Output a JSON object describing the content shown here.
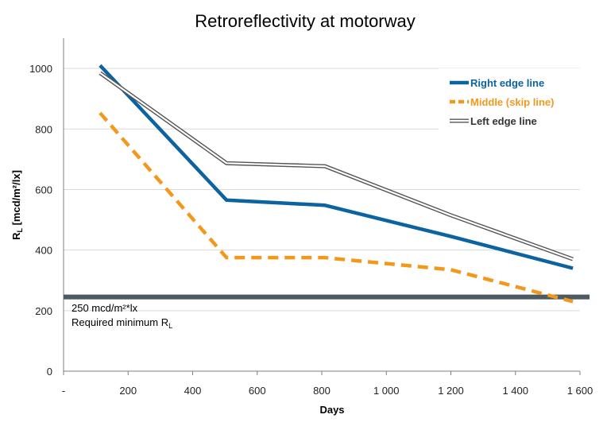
{
  "chart_data": {
    "type": "line",
    "title": "Retroreflectivity at motorway",
    "xlabel": "Days",
    "ylabel_main": "R",
    "ylabel_sub": "L",
    "ylabel_tail": " [mcd/m²/lx]",
    "xlim": [
      0,
      1600
    ],
    "ylim": [
      0,
      1100
    ],
    "x_ticks": [
      {
        "value": 0,
        "label": "-"
      },
      {
        "value": 200,
        "label": "200"
      },
      {
        "value": 400,
        "label": "400"
      },
      {
        "value": 600,
        "label": "600"
      },
      {
        "value": 800,
        "label": "800"
      },
      {
        "value": 1000,
        "label": "1 000"
      },
      {
        "value": 1200,
        "label": "1 200"
      },
      {
        "value": 1400,
        "label": "1 400"
      },
      {
        "value": 1600,
        "label": "1 600"
      }
    ],
    "y_ticks": [
      {
        "value": 0,
        "label": "0"
      },
      {
        "value": 200,
        "label": "200"
      },
      {
        "value": 400,
        "label": "400"
      },
      {
        "value": 600,
        "label": "600"
      },
      {
        "value": 800,
        "label": "800"
      },
      {
        "value": 1000,
        "label": "1000"
      }
    ],
    "grid": "horizontal",
    "legend_position": "top-right",
    "series": [
      {
        "name": "Right edge line",
        "color": "#0b63a0",
        "style": "solid",
        "x": [
          113,
          505,
          810,
          1200,
          1578
        ],
        "y": [
          1010,
          565,
          548,
          445,
          340
        ]
      },
      {
        "name": "Middle (skip line)",
        "color": "#f2991d",
        "style": "dashed",
        "x": [
          113,
          505,
          810,
          1200,
          1578
        ],
        "y": [
          853,
          375,
          375,
          335,
          230
        ]
      },
      {
        "name": "Left edge line",
        "color": "#555555",
        "style": "double",
        "x": [
          113,
          505,
          810,
          1200,
          1578
        ],
        "y": [
          985,
          687,
          677,
          515,
          370
        ]
      }
    ],
    "reference_line": {
      "value": 245,
      "color": "#4d5a62",
      "label_line1": "250 mcd/m²*lx",
      "label_line2_main": "Required minimum R",
      "label_line2_sub": "L"
    }
  }
}
